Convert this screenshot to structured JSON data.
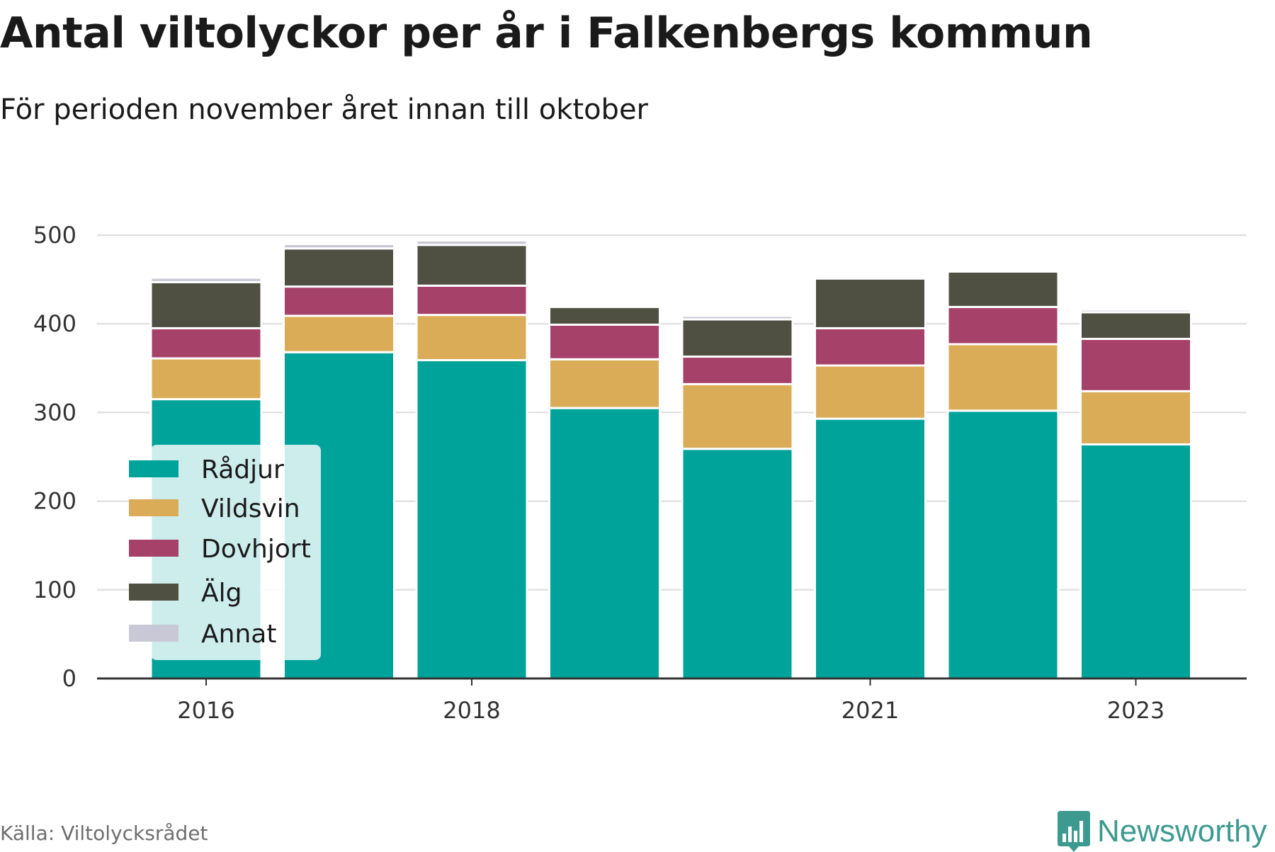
{
  "header": {
    "title": "Antal viltolyckor per år i Falkenbergs kommun",
    "subtitle": "För perioden november året innan till oktober"
  },
  "footer": {
    "source": "Källa: Viltolycksrådet",
    "brand": "Newsworthy",
    "brand_icon": "bar-chart-icon"
  },
  "colors": {
    "Rådjur": "#00a39a",
    "Vildsvin": "#dbac58",
    "Dovhjort": "#a64169",
    "Älg": "#4f5042",
    "Annat": "#c9c8d6",
    "brand": "#3d9a90"
  },
  "chart_data": {
    "type": "bar",
    "stacked": true,
    "categories": [
      "2016",
      "2017",
      "2018",
      "2019",
      "2020",
      "2021",
      "2022",
      "2023"
    ],
    "x_tick_labels": [
      "2016",
      "2018",
      "2021",
      "2023"
    ],
    "y_ticks": [
      0,
      100,
      200,
      300,
      400,
      500
    ],
    "ylim": [
      0,
      520
    ],
    "grid": true,
    "legend_position": "inside-left",
    "series": [
      {
        "name": "Rådjur",
        "values": [
          315,
          368,
          359,
          305,
          259,
          293,
          302,
          264
        ]
      },
      {
        "name": "Vildsvin",
        "values": [
          46,
          41,
          51,
          55,
          73,
          60,
          75,
          60
        ]
      },
      {
        "name": "Dovhjort",
        "values": [
          34,
          33,
          33,
          39,
          31,
          42,
          42,
          59
        ]
      },
      {
        "name": "Älg",
        "values": [
          52,
          43,
          46,
          20,
          42,
          56,
          40,
          30
        ]
      },
      {
        "name": "Annat",
        "values": [
          5,
          5,
          5,
          0,
          4,
          0,
          2,
          3
        ]
      }
    ],
    "xlabel": "",
    "ylabel": ""
  }
}
